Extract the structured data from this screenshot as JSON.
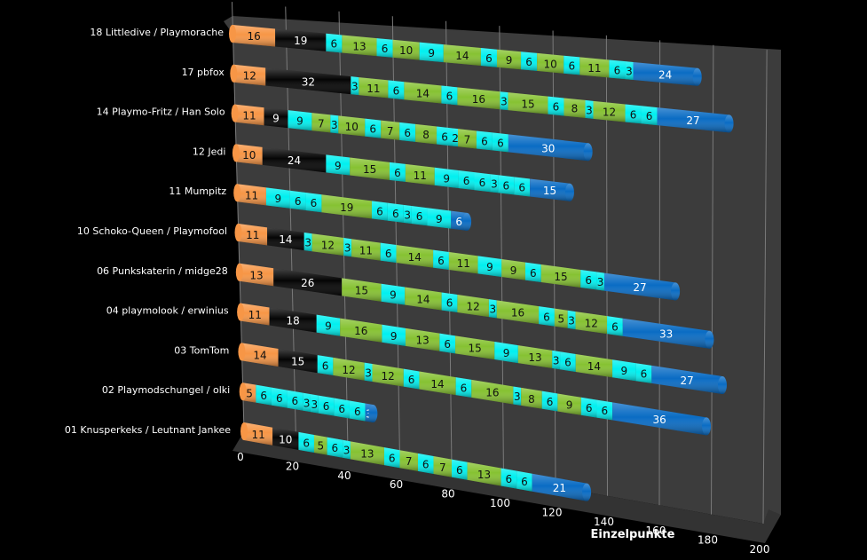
{
  "chart_data": {
    "type": "bar",
    "orientation": "horizontal",
    "stacked": true,
    "style": "3d-cylinder",
    "title": "",
    "xlabel": "Einzelpunkte",
    "ylabel": "",
    "xlim": [
      0,
      200
    ],
    "x_ticks": [
      "0",
      "20",
      "40",
      "60",
      "80",
      "100",
      "120",
      "140",
      "160",
      "180",
      "200"
    ],
    "grid": true,
    "legend": "none",
    "palette": {
      "orange": "#f79646",
      "black": "#050505",
      "cyan": "#00f0f0",
      "green": "#86c232",
      "blue": "#0a6cc4"
    },
    "categories": [
      "18 Littledive / Playmorache",
      "17 pbfox",
      "14 Playmo-Fritz / Han Solo",
      "12 Jedi",
      "11 Mumpitz",
      "10 Schoko-Queen / Playmofool",
      "06 Punkskaterin / midge28",
      "04 playmolook / erwinius",
      "03 TomTom",
      "02 Playmodschungel / olki",
      "01 Knusperkeks / Leutnant Jankee"
    ],
    "rows": [
      {
        "name": "18 Littledive / Playmorache",
        "segments": [
          {
            "v": 16,
            "c": "orange"
          },
          {
            "v": 19,
            "c": "black"
          },
          {
            "v": 6,
            "c": "cyan"
          },
          {
            "v": 13,
            "c": "green"
          },
          {
            "v": 6,
            "c": "cyan"
          },
          {
            "v": 10,
            "c": "green"
          },
          {
            "v": 9,
            "c": "cyan"
          },
          {
            "v": 14,
            "c": "green"
          },
          {
            "v": 6,
            "c": "cyan"
          },
          {
            "v": 9,
            "c": "green"
          },
          {
            "v": 6,
            "c": "cyan"
          },
          {
            "v": 10,
            "c": "green"
          },
          {
            "v": 6,
            "c": "cyan"
          },
          {
            "v": 11,
            "c": "green"
          },
          {
            "v": 6,
            "c": "cyan"
          },
          {
            "v": 3,
            "c": "cyan"
          },
          {
            "v": 24,
            "c": "blue"
          }
        ]
      },
      {
        "name": "17 pbfox",
        "segments": [
          {
            "v": 12,
            "c": "orange"
          },
          {
            "v": 32,
            "c": "black"
          },
          {
            "v": 3,
            "c": "cyan"
          },
          {
            "v": 11,
            "c": "green"
          },
          {
            "v": 6,
            "c": "cyan"
          },
          {
            "v": 14,
            "c": "green"
          },
          {
            "v": 6,
            "c": "cyan"
          },
          {
            "v": 16,
            "c": "green"
          },
          {
            "v": 3,
            "c": "cyan"
          },
          {
            "v": 15,
            "c": "green"
          },
          {
            "v": 6,
            "c": "cyan"
          },
          {
            "v": 8,
            "c": "green"
          },
          {
            "v": 3,
            "c": "cyan"
          },
          {
            "v": 12,
            "c": "green"
          },
          {
            "v": 6,
            "c": "cyan"
          },
          {
            "v": 6,
            "c": "cyan"
          },
          {
            "v": 27,
            "c": "blue"
          }
        ]
      },
      {
        "name": "14 Playmo-Fritz / Han Solo",
        "segments": [
          {
            "v": 11,
            "c": "orange"
          },
          {
            "v": 9,
            "c": "black"
          },
          {
            "v": 9,
            "c": "cyan"
          },
          {
            "v": 7,
            "c": "green"
          },
          {
            "v": 3,
            "c": "cyan"
          },
          {
            "v": 10,
            "c": "green"
          },
          {
            "v": 6,
            "c": "cyan"
          },
          {
            "v": 7,
            "c": "green"
          },
          {
            "v": 6,
            "c": "cyan"
          },
          {
            "v": 8,
            "c": "green"
          },
          {
            "v": 6,
            "c": "cyan"
          },
          {
            "v": 2,
            "c": "cyan"
          },
          {
            "v": 7,
            "c": "green"
          },
          {
            "v": 6,
            "c": "cyan"
          },
          {
            "v": 6,
            "c": "cyan"
          },
          {
            "v": 30,
            "c": "blue"
          }
        ]
      },
      {
        "name": "12 Jedi",
        "segments": [
          {
            "v": 10,
            "c": "orange"
          },
          {
            "v": 24,
            "c": "black"
          },
          {
            "v": 9,
            "c": "cyan"
          },
          {
            "v": 15,
            "c": "green"
          },
          {
            "v": 6,
            "c": "cyan"
          },
          {
            "v": 11,
            "c": "green"
          },
          {
            "v": 9,
            "c": "cyan"
          },
          {
            "v": 6,
            "c": "cyan"
          },
          {
            "v": 6,
            "c": "cyan"
          },
          {
            "v": 3,
            "c": "cyan"
          },
          {
            "v": 6,
            "c": "cyan"
          },
          {
            "v": 6,
            "c": "cyan"
          },
          {
            "v": 15,
            "c": "blue"
          }
        ]
      },
      {
        "name": "11 Mumpitz",
        "segments": [
          {
            "v": 11,
            "c": "orange"
          },
          {
            "v": 9,
            "c": "cyan"
          },
          {
            "v": 6,
            "c": "cyan"
          },
          {
            "v": 6,
            "c": "cyan"
          },
          {
            "v": 19,
            "c": "green"
          },
          {
            "v": 6,
            "c": "cyan"
          },
          {
            "v": 6,
            "c": "cyan"
          },
          {
            "v": 3,
            "c": "cyan"
          },
          {
            "v": 6,
            "c": "cyan"
          },
          {
            "v": 9,
            "c": "cyan"
          },
          {
            "v": 6,
            "c": "blue"
          }
        ]
      },
      {
        "name": "10 Schoko-Queen / Playmofool",
        "segments": [
          {
            "v": 11,
            "c": "orange"
          },
          {
            "v": 14,
            "c": "black"
          },
          {
            "v": 3,
            "c": "cyan"
          },
          {
            "v": 12,
            "c": "green"
          },
          {
            "v": 3,
            "c": "cyan"
          },
          {
            "v": 11,
            "c": "green"
          },
          {
            "v": 6,
            "c": "cyan"
          },
          {
            "v": 14,
            "c": "green"
          },
          {
            "v": 6,
            "c": "cyan"
          },
          {
            "v": 11,
            "c": "green"
          },
          {
            "v": 9,
            "c": "cyan"
          },
          {
            "v": 9,
            "c": "green"
          },
          {
            "v": 6,
            "c": "cyan"
          },
          {
            "v": 15,
            "c": "green"
          },
          {
            "v": 6,
            "c": "cyan"
          },
          {
            "v": 3,
            "c": "cyan"
          },
          {
            "v": 27,
            "c": "blue"
          }
        ]
      },
      {
        "name": "06 Punkskaterin / midge28",
        "segments": [
          {
            "v": 13,
            "c": "orange"
          },
          {
            "v": 26,
            "c": "black"
          },
          {
            "v": 15,
            "c": "green"
          },
          {
            "v": 9,
            "c": "cyan"
          },
          {
            "v": 14,
            "c": "green"
          },
          {
            "v": 6,
            "c": "cyan"
          },
          {
            "v": 12,
            "c": "green"
          },
          {
            "v": 3,
            "c": "cyan"
          },
          {
            "v": 16,
            "c": "green"
          },
          {
            "v": 6,
            "c": "cyan"
          },
          {
            "v": 5,
            "c": "green"
          },
          {
            "v": 3,
            "c": "cyan"
          },
          {
            "v": 12,
            "c": "green"
          },
          {
            "v": 6,
            "c": "cyan"
          },
          {
            "v": 33,
            "c": "blue"
          }
        ]
      },
      {
        "name": "04 playmolook / erwinius",
        "segments": [
          {
            "v": 11,
            "c": "orange"
          },
          {
            "v": 18,
            "c": "black"
          },
          {
            "v": 9,
            "c": "cyan"
          },
          {
            "v": 16,
            "c": "green"
          },
          {
            "v": 9,
            "c": "cyan"
          },
          {
            "v": 13,
            "c": "green"
          },
          {
            "v": 6,
            "c": "cyan"
          },
          {
            "v": 15,
            "c": "green"
          },
          {
            "v": 9,
            "c": "cyan"
          },
          {
            "v": 13,
            "c": "green"
          },
          {
            "v": 3,
            "c": "cyan"
          },
          {
            "v": 6,
            "c": "cyan"
          },
          {
            "v": 14,
            "c": "green"
          },
          {
            "v": 9,
            "c": "cyan"
          },
          {
            "v": 6,
            "c": "cyan"
          },
          {
            "v": 27,
            "c": "blue"
          }
        ]
      },
      {
        "name": "03 TomTom",
        "segments": [
          {
            "v": 14,
            "c": "orange"
          },
          {
            "v": 15,
            "c": "black"
          },
          {
            "v": 6,
            "c": "cyan"
          },
          {
            "v": 12,
            "c": "green"
          },
          {
            "v": 3,
            "c": "cyan"
          },
          {
            "v": 12,
            "c": "green"
          },
          {
            "v": 6,
            "c": "cyan"
          },
          {
            "v": 14,
            "c": "green"
          },
          {
            "v": 6,
            "c": "cyan"
          },
          {
            "v": 16,
            "c": "green"
          },
          {
            "v": 3,
            "c": "cyan"
          },
          {
            "v": 8,
            "c": "green"
          },
          {
            "v": 6,
            "c": "cyan"
          },
          {
            "v": 9,
            "c": "green"
          },
          {
            "v": 6,
            "c": "cyan"
          },
          {
            "v": 6,
            "c": "cyan"
          },
          {
            "v": 36,
            "c": "blue"
          }
        ]
      },
      {
        "name": "02 Playmodschungel / olki",
        "segments": [
          {
            "v": 5,
            "c": "orange"
          },
          {
            "v": 6,
            "c": "cyan"
          },
          {
            "v": 6,
            "c": "cyan"
          },
          {
            "v": 6,
            "c": "cyan"
          },
          {
            "v": 3,
            "c": "cyan"
          },
          {
            "v": 3,
            "c": "cyan"
          },
          {
            "v": 6,
            "c": "cyan"
          },
          {
            "v": 6,
            "c": "cyan"
          },
          {
            "v": 6,
            "c": "cyan"
          },
          {
            "v": 3,
            "c": "blue"
          }
        ]
      },
      {
        "name": "01 Knusperkeks / Leutnant Jankee",
        "segments": [
          {
            "v": 11,
            "c": "orange"
          },
          {
            "v": 10,
            "c": "black"
          },
          {
            "v": 6,
            "c": "cyan"
          },
          {
            "v": 5,
            "c": "green"
          },
          {
            "v": 6,
            "c": "cyan"
          },
          {
            "v": 3,
            "c": "cyan"
          },
          {
            "v": 13,
            "c": "green"
          },
          {
            "v": 6,
            "c": "cyan"
          },
          {
            "v": 7,
            "c": "green"
          },
          {
            "v": 6,
            "c": "cyan"
          },
          {
            "v": 7,
            "c": "green"
          },
          {
            "v": 6,
            "c": "cyan"
          },
          {
            "v": 13,
            "c": "green"
          },
          {
            "v": 6,
            "c": "cyan"
          },
          {
            "v": 6,
            "c": "cyan"
          },
          {
            "v": 21,
            "c": "blue"
          }
        ]
      }
    ]
  }
}
